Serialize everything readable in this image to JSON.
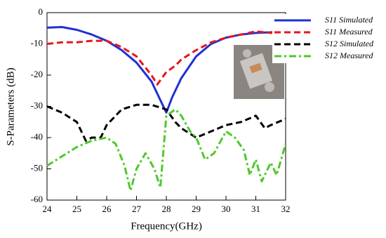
{
  "chart_data": {
    "type": "line",
    "xlabel": "Frequency(GHz)",
    "ylabel": "S-Parameters (dB)",
    "xlim": [
      24,
      32
    ],
    "xticks": [
      24,
      25,
      26,
      27,
      28,
      29,
      30,
      31,
      32
    ],
    "ylim": [
      -60,
      0
    ],
    "yticks": [
      0,
      -10,
      -20,
      -30,
      -40,
      -50,
      -60
    ],
    "legend": "upper right",
    "series": [
      {
        "name": "S11 Simulated",
        "color": "#1f2fd6",
        "style": "solid",
        "x": [
          24,
          24.5,
          25,
          25.5,
          26,
          26.5,
          27,
          27.5,
          27.8,
          28,
          28.2,
          28.5,
          29,
          29.5,
          30,
          30.5,
          31,
          31.5,
          32
        ],
        "values": [
          -4.8,
          -4.6,
          -5.5,
          -7,
          -9,
          -12,
          -16,
          -22,
          -28,
          -32,
          -27,
          -21,
          -14,
          -10,
          -8,
          -7,
          -6.5,
          -6.3,
          -6
        ]
      },
      {
        "name": "S11 Measured",
        "color": "#e8161b",
        "style": "dashed",
        "x": [
          24,
          24.5,
          25,
          25.5,
          26,
          26.5,
          27,
          27.5,
          27.7,
          28,
          28.3,
          28.5,
          29,
          29.5,
          30,
          30.5,
          31,
          31.5,
          32
        ],
        "values": [
          -10,
          -9.5,
          -9.5,
          -9,
          -9,
          -11,
          -14,
          -20,
          -23,
          -19,
          -17,
          -15,
          -12,
          -9.5,
          -8,
          -7,
          -6,
          -6.5,
          -6
        ]
      },
      {
        "name": "S12 Simulated",
        "color": "#000000",
        "style": "dashed",
        "x": [
          24,
          24.5,
          25,
          25.3,
          25.5,
          25.8,
          26,
          26.5,
          27,
          27.5,
          28,
          28.3,
          28.5,
          29,
          29.5,
          30,
          30.5,
          31,
          31.3,
          31.5,
          32
        ],
        "values": [
          -30,
          -32,
          -35,
          -41,
          -40,
          -40,
          -36,
          -31,
          -29.5,
          -29.5,
          -31,
          -35,
          -37,
          -40,
          -38,
          -36,
          -35,
          -33,
          -37,
          -36,
          -34
        ]
      },
      {
        "name": "S12 Measured",
        "color": "#4ec92a",
        "style": "dash-dot",
        "x": [
          24,
          24.5,
          25,
          25.5,
          26,
          26.3,
          26.6,
          26.8,
          27,
          27.3,
          27.6,
          27.8,
          28,
          28.3,
          28.5,
          28.8,
          29,
          29.3,
          29.6,
          30,
          30.3,
          30.6,
          30.8,
          31,
          31.2,
          31.5,
          31.7,
          32
        ],
        "values": [
          -49,
          -46,
          -43,
          -41,
          -40,
          -42,
          -49,
          -57,
          -50,
          -45,
          -50,
          -56,
          -33,
          -31,
          -33,
          -38,
          -40,
          -47,
          -45,
          -38,
          -40,
          -44,
          -52,
          -47,
          -54,
          -48,
          -52,
          -42
        ]
      }
    ]
  }
}
